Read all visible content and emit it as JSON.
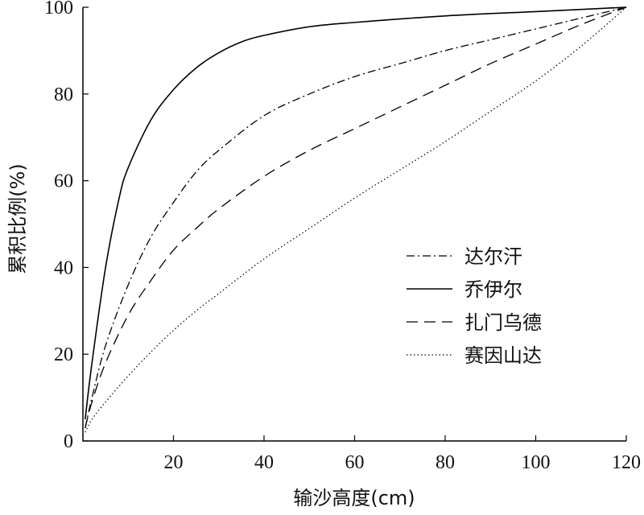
{
  "chart_data": {
    "type": "line",
    "xlabel": "输沙高度(cm)",
    "ylabel": "累积比例(%)",
    "xlim": [
      0,
      120
    ],
    "ylim": [
      0,
      100
    ],
    "xticks": [
      20,
      40,
      60,
      80,
      100,
      120
    ],
    "yticks": [
      0,
      20,
      40,
      60,
      80,
      100
    ],
    "grid": false,
    "legend_position": "center-right",
    "series": [
      {
        "name": "达尔汗",
        "style": "dash-dot",
        "x": [
          0.5,
          2,
          5,
          10,
          15,
          20,
          25,
          30,
          40,
          50,
          60,
          70,
          80,
          90,
          100,
          110,
          120
        ],
        "y": [
          3,
          10,
          22,
          36,
          47,
          55,
          62,
          67,
          75,
          80,
          84,
          87,
          90,
          92.5,
          95,
          97.5,
          100
        ]
      },
      {
        "name": "乔伊尔",
        "style": "solid",
        "x": [
          0.5,
          2,
          5,
          8,
          10,
          15,
          20,
          25,
          30,
          35,
          40,
          50,
          60,
          80,
          100,
          120
        ],
        "y": [
          5,
          18,
          40,
          56,
          63,
          74,
          81,
          86,
          89.5,
          92,
          93.5,
          95.5,
          96.5,
          98,
          99,
          100
        ]
      },
      {
        "name": "扎门乌德",
        "style": "dashed",
        "x": [
          0.5,
          2,
          5,
          10,
          15,
          20,
          25,
          30,
          40,
          50,
          60,
          70,
          80,
          90,
          100,
          110,
          120
        ],
        "y": [
          3,
          9,
          18,
          29,
          37,
          44,
          49,
          53.5,
          61,
          67,
          72,
          77,
          82,
          87,
          91.5,
          96,
          100
        ]
      },
      {
        "name": "赛因山达",
        "style": "dotted",
        "x": [
          0.5,
          2,
          5,
          10,
          15,
          20,
          25,
          30,
          40,
          50,
          60,
          70,
          80,
          90,
          100,
          110,
          120
        ],
        "y": [
          2,
          5,
          9,
          15,
          20.5,
          25.5,
          30,
          34,
          42,
          49,
          56,
          62.5,
          69,
          76,
          83,
          91,
          100
        ]
      }
    ]
  }
}
